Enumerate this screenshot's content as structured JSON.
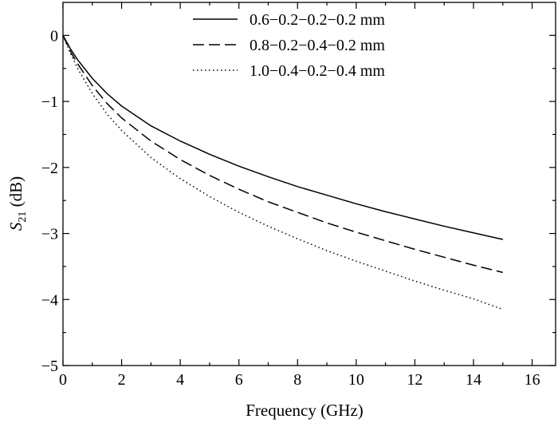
{
  "chart_data": {
    "type": "line",
    "xlabel": "Frequency (GHz)",
    "ylabel": {
      "var": "S",
      "sub": "21",
      "unit": " (dB)"
    },
    "xlim": [
      0,
      16.8
    ],
    "ylim": [
      -5,
      0.5
    ],
    "xticks": [
      "0",
      "2",
      "4",
      "6",
      "8",
      "10",
      "12",
      "14",
      "16"
    ],
    "yticks": [
      "0",
      "−1",
      "−2",
      "−3",
      "−4",
      "−5"
    ],
    "grid": false,
    "legend_position": "top-right",
    "series": [
      {
        "name": "0.6−0.2−0.2−0.2 mm",
        "style": "solid",
        "x": [
          0,
          0.25,
          0.5,
          1,
          1.5,
          2,
          3,
          4,
          5,
          6,
          7,
          8,
          9,
          10,
          11,
          12,
          13,
          14,
          15
        ],
        "y": [
          0,
          -0.2,
          -0.37,
          -0.65,
          -0.88,
          -1.07,
          -1.37,
          -1.6,
          -1.8,
          -1.98,
          -2.14,
          -2.29,
          -2.42,
          -2.55,
          -2.67,
          -2.78,
          -2.89,
          -2.99,
          -3.09
        ]
      },
      {
        "name": "0.8−0.2−0.4−0.2 mm",
        "style": "dashed",
        "x": [
          0,
          0.25,
          0.5,
          1,
          1.5,
          2,
          3,
          4,
          5,
          6,
          7,
          8,
          9,
          10,
          11,
          12,
          13,
          14,
          15
        ],
        "y": [
          0,
          -0.24,
          -0.43,
          -0.76,
          -1.03,
          -1.25,
          -1.6,
          -1.88,
          -2.12,
          -2.33,
          -2.52,
          -2.68,
          -2.84,
          -2.98,
          -3.11,
          -3.24,
          -3.36,
          -3.48,
          -3.59
        ]
      },
      {
        "name": "1.0−0.4−0.2−0.4 mm",
        "style": "dotted",
        "x": [
          0,
          0.25,
          0.5,
          1,
          1.5,
          2,
          3,
          4,
          5,
          6,
          7,
          8,
          9,
          10,
          11,
          12,
          13,
          14,
          15
        ],
        "y": [
          0,
          -0.27,
          -0.5,
          -0.88,
          -1.19,
          -1.44,
          -1.85,
          -2.17,
          -2.44,
          -2.68,
          -2.89,
          -3.08,
          -3.26,
          -3.42,
          -3.57,
          -3.72,
          -3.86,
          -3.99,
          -4.15
        ]
      }
    ]
  }
}
